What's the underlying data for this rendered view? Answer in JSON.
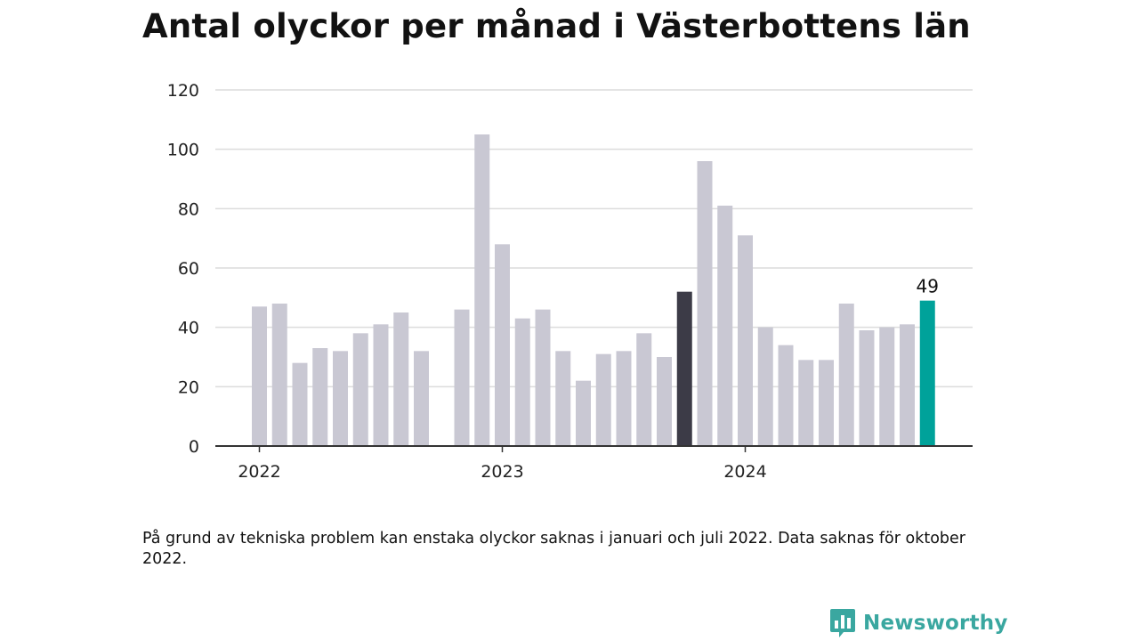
{
  "title": "Antal olyckor per månad i Västerbottens län",
  "footnote": "På grund av tekniska problem kan enstaka olyckor saknas i januari och juli 2022. Data saknas för oktober 2022.",
  "brand": {
    "name": "Newsworthy",
    "icon": "newsworthy-logo-icon"
  },
  "colors": {
    "bar": "#c9c8d3",
    "highlight": "#3c3b47",
    "latest": "#00a29a",
    "grid": "#dcdcdc",
    "axis": "#333333"
  },
  "chart_data": {
    "type": "bar",
    "title": "Antal olyckor per månad i Västerbottens län",
    "xlabel": "",
    "ylabel": "",
    "ylim": [
      0,
      120
    ],
    "yticks": [
      "0",
      "20",
      "40",
      "60",
      "80",
      "100",
      "120"
    ],
    "xticks": [
      {
        "label": "2022",
        "month": "2022-01"
      },
      {
        "label": "2023",
        "month": "2023-01"
      },
      {
        "label": "2024",
        "month": "2024-01"
      }
    ],
    "grid": true,
    "legend": "none",
    "months": [
      "2022-01",
      "2022-02",
      "2022-03",
      "2022-04",
      "2022-05",
      "2022-06",
      "2022-07",
      "2022-08",
      "2022-09",
      "2022-10",
      "2022-11",
      "2022-12",
      "2023-01",
      "2023-02",
      "2023-03",
      "2023-04",
      "2023-05",
      "2023-06",
      "2023-07",
      "2023-08",
      "2023-09",
      "2023-10",
      "2023-11",
      "2023-12",
      "2024-01",
      "2024-02",
      "2024-03",
      "2024-04",
      "2024-05",
      "2024-06",
      "2024-07",
      "2024-08",
      "2024-09",
      "2024-10"
    ],
    "values": [
      47,
      48,
      28,
      33,
      32,
      38,
      41,
      45,
      32,
      null,
      46,
      105,
      68,
      43,
      46,
      32,
      22,
      31,
      32,
      38,
      30,
      52,
      96,
      81,
      71,
      40,
      34,
      29,
      29,
      48,
      39,
      40,
      41,
      49
    ],
    "highlight_month": "2023-10",
    "latest_month": "2024-10",
    "data_labels": [
      {
        "month": "2024-10",
        "text": "49"
      }
    ]
  }
}
